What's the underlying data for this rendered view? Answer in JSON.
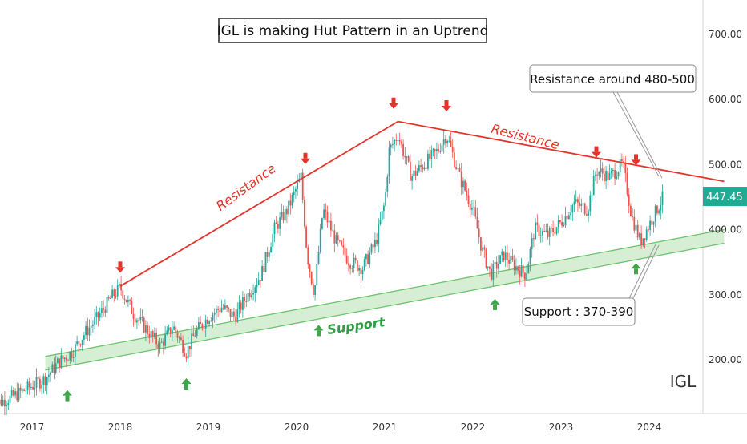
{
  "chart_data": {
    "type": "line",
    "title": "IGL is making Hut Pattern in an Uptrend",
    "symbol": "IGL",
    "last_price": "447.45",
    "x_ticks": [
      "2017",
      "2018",
      "2019",
      "2020",
      "2021",
      "2022",
      "2023",
      "2024"
    ],
    "y_ticks": [
      "200.00",
      "300.00",
      "400.00",
      "500.00",
      "600.00",
      "700.00"
    ],
    "ylim": [
      100,
      740
    ],
    "x_range": [
      2016.55,
      2024.85
    ],
    "annotations": {
      "resistance_label_1": "Resistance",
      "resistance_label_2": "Resistance",
      "support_label": "Support",
      "resistance_callout": "Resistance around 480-500",
      "support_callout": "Support : 370-390"
    },
    "resistance_lines": [
      {
        "from": [
          2018.0,
          312
        ],
        "to": [
          2021.15,
          565
        ]
      },
      {
        "from": [
          2021.15,
          565
        ],
        "to": [
          2024.85,
          473
        ]
      }
    ],
    "support_channel": {
      "from": [
        2017.15,
        183
      ],
      "to": [
        2024.85,
        378
      ],
      "width": 17
    },
    "resistance_markers": [
      [
        2018.0,
        335
      ],
      [
        2020.1,
        502
      ],
      [
        2021.1,
        587
      ],
      [
        2021.7,
        583
      ],
      [
        2023.4,
        512
      ],
      [
        2023.85,
        500
      ]
    ],
    "support_markers": [
      [
        2017.4,
        150
      ],
      [
        2018.75,
        168
      ],
      [
        2020.25,
        250
      ],
      [
        2022.25,
        290
      ],
      [
        2023.85,
        345
      ]
    ],
    "series": [
      {
        "x": [
          2016.55,
          2016.75,
          2016.95,
          2017.15,
          2017.3,
          2017.45,
          2017.6,
          2017.75,
          2017.9,
          2018.0,
          2018.15,
          2018.3,
          2018.45,
          2018.6,
          2018.75,
          2018.85,
          2019.0,
          2019.15,
          2019.3,
          2019.45,
          2019.6,
          2019.75,
          2019.9,
          2020.05,
          2020.12,
          2020.2,
          2020.3,
          2020.45,
          2020.6,
          2020.75,
          2020.9,
          2021.0,
          2021.05,
          2021.15,
          2021.3,
          2021.45,
          2021.6,
          2021.7,
          2021.85,
          2022.0,
          2022.1,
          2022.2,
          2022.35,
          2022.5,
          2022.6,
          2022.7,
          2022.85,
          2023.0,
          2023.15,
          2023.3,
          2023.4,
          2023.55,
          2023.7,
          2023.8,
          2023.9,
          2024.05,
          2024.15
        ],
        "values": [
          130,
          140,
          155,
          170,
          195,
          210,
          240,
          265,
          295,
          310,
          270,
          245,
          220,
          250,
          210,
          240,
          265,
          280,
          265,
          300,
          330,
          400,
          430,
          480,
          360,
          300,
          430,
          380,
          350,
          340,
          380,
          440,
          520,
          545,
          480,
          500,
          520,
          545,
          480,
          430,
          370,
          330,
          360,
          340,
          330,
          400,
          390,
          410,
          440,
          430,
          490,
          480,
          500,
          420,
          380,
          420,
          447
        ]
      }
    ]
  }
}
